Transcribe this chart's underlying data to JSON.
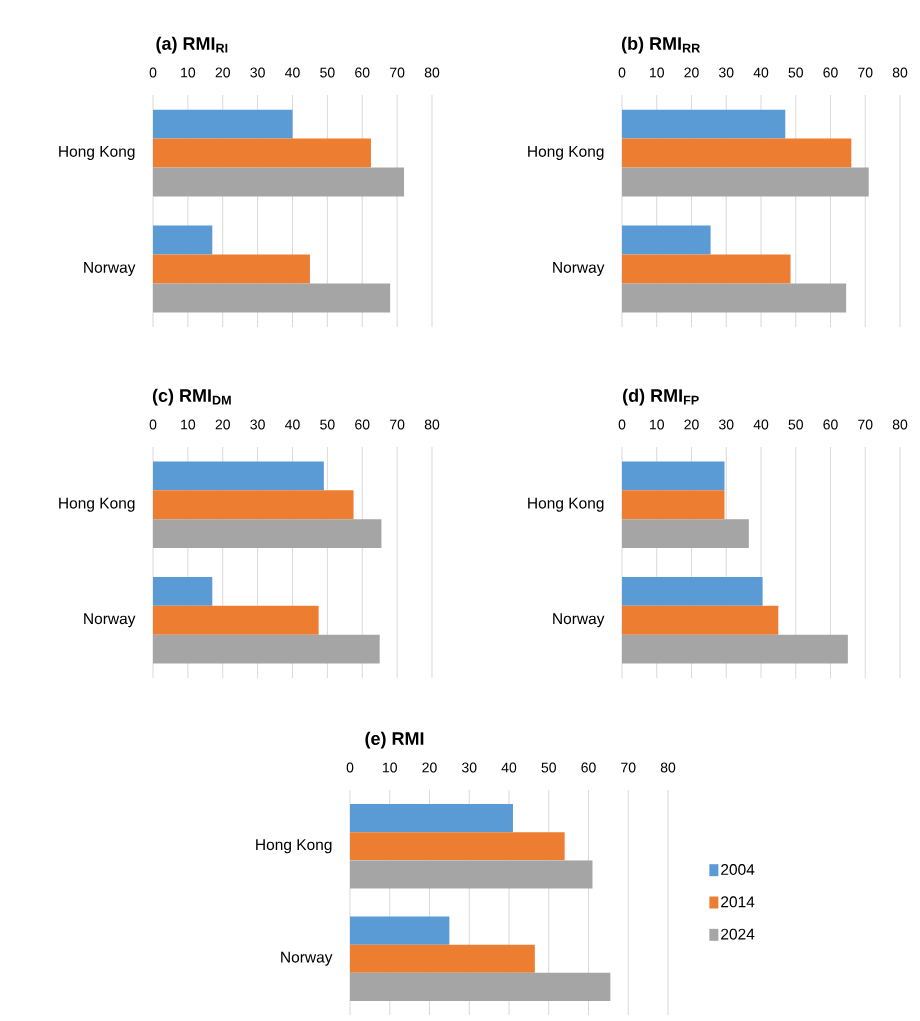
{
  "chart_data": [
    {
      "type": "bar",
      "orientation": "horizontal",
      "title": "(a) RMI$_{RI}$",
      "categories": [
        "Hong Kong",
        "Norway"
      ],
      "xlim": [
        0,
        80
      ],
      "xticks": [
        0,
        10,
        20,
        30,
        40,
        50,
        60,
        70,
        80
      ],
      "grid": "x",
      "series": [
        {
          "color": "#5b9bd5",
          "values": [
            40,
            17
          ]
        },
        {
          "color": "#ed7d31",
          "values": [
            62.5,
            45
          ]
        },
        {
          "color": "#a5a5a5",
          "values": [
            72,
            68
          ]
        }
      ]
    },
    {
      "type": "bar",
      "orientation": "horizontal",
      "title": "(b) RMI$_{RR}$",
      "categories": [
        "Hong Kong",
        "Norway"
      ],
      "xlim": [
        0,
        80
      ],
      "xticks": [
        0,
        10,
        20,
        30,
        40,
        50,
        60,
        70,
        80
      ],
      "grid": "x",
      "series": [
        {
          "color": "#5b9bd5",
          "values": [
            47,
            25.5
          ]
        },
        {
          "color": "#ed7d31",
          "values": [
            66,
            48.5
          ]
        },
        {
          "color": "#a5a5a5",
          "values": [
            71,
            64.5
          ]
        }
      ]
    },
    {
      "type": "bar",
      "orientation": "horizontal",
      "title": "(c) RMI$_{DM}$",
      "categories": [
        "Hong Kong",
        "Norway"
      ],
      "xlim": [
        0,
        80
      ],
      "xticks": [
        0,
        10,
        20,
        30,
        40,
        50,
        60,
        70,
        80
      ],
      "grid": "x",
      "series": [
        {
          "color": "#5b9bd5",
          "values": [
            49,
            17
          ]
        },
        {
          "color": "#ed7d31",
          "values": [
            57.5,
            47.5
          ]
        },
        {
          "color": "#a5a5a5",
          "values": [
            65.5,
            65
          ]
        }
      ]
    },
    {
      "type": "bar",
      "orientation": "horizontal",
      "title": "(d) RMI$_{FP}$",
      "categories": [
        "Hong Kong",
        "Norway"
      ],
      "xlim": [
        0,
        80
      ],
      "xticks": [
        0,
        10,
        20,
        30,
        40,
        50,
        60,
        70,
        80
      ],
      "grid": "x",
      "series": [
        {
          "color": "#5b9bd5",
          "values": [
            29.5,
            40.5
          ]
        },
        {
          "color": "#ed7d31",
          "values": [
            29.5,
            45
          ]
        },
        {
          "color": "#a5a5a5",
          "values": [
            36.5,
            65
          ]
        }
      ]
    },
    {
      "type": "bar",
      "orientation": "horizontal",
      "title": "(e) RMI",
      "categories": [
        "Hong Kong",
        "Norway"
      ],
      "xlim": [
        0,
        80
      ],
      "xticks": [
        0,
        10,
        20,
        30,
        40,
        50,
        60,
        70,
        80
      ],
      "grid": "x",
      "legend": "right",
      "series": [
        {
          "name": "2004",
          "color": "#5b9bd5",
          "values": [
            41,
            25
          ]
        },
        {
          "name": "2014",
          "color": "#ed7d31",
          "values": [
            54,
            46.5
          ]
        },
        {
          "name": "2024",
          "color": "#a5a5a5",
          "values": [
            61,
            65.5
          ]
        }
      ]
    }
  ]
}
